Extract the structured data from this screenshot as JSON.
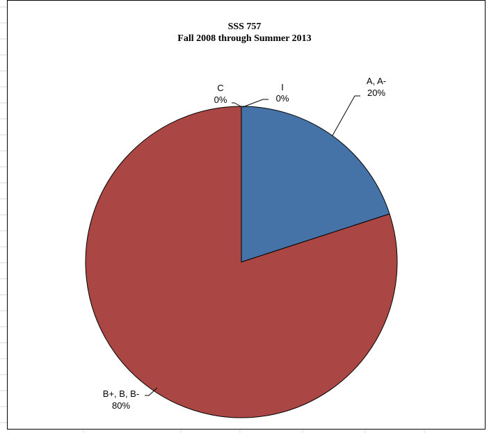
{
  "chart_data": {
    "type": "pie",
    "title": "SSS  757",
    "subtitle": "Fall 2008 through Summer 2013",
    "slices": [
      {
        "category": "A, A-",
        "value": 20,
        "label": "20%",
        "color": "#4572A7"
      },
      {
        "category": "B+, B, B-",
        "value": 80,
        "label": "80%",
        "color": "#AA4643"
      },
      {
        "category": "C",
        "value": 0,
        "label": "0%",
        "color": "#89A54E"
      },
      {
        "category": "I",
        "value": 0,
        "label": "0%",
        "color": "#80699B"
      }
    ],
    "legend": "none",
    "border_color": "#000000"
  }
}
